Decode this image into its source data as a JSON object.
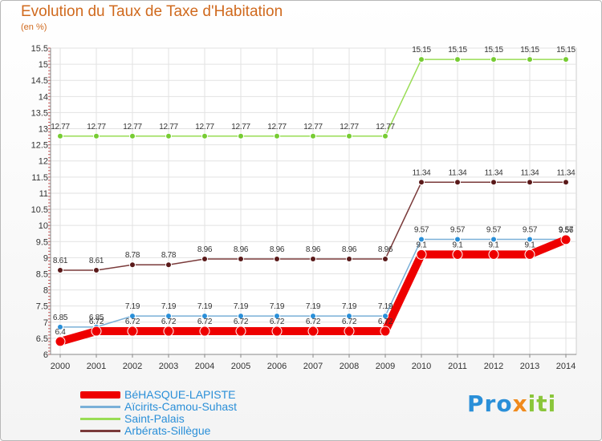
{
  "title": "Evolution du Taux de Taxe d'Habitation",
  "unit": "(en %)",
  "brand": {
    "part1": "Pro",
    "part2": "x",
    "part3": "iti"
  },
  "chart_data": {
    "type": "line",
    "title": "Evolution du Taux de Taxe d'Habitation",
    "ylabel": "(en %)",
    "xlabel": "",
    "ylim": [
      6,
      15.5
    ],
    "yticks": [
      "6",
      "6.5",
      "7",
      "7.5",
      "8",
      "8.5",
      "9",
      "9.5",
      "10",
      "10.5",
      "11",
      "11.5",
      "12",
      "12.5",
      "13",
      "13.5",
      "14",
      "14.5",
      "15",
      "15.5"
    ],
    "categories": [
      "2000",
      "2001",
      "2002",
      "2003",
      "2004",
      "2005",
      "2006",
      "2007",
      "2008",
      "2009",
      "2010",
      "2011",
      "2012",
      "2013",
      "2014"
    ],
    "series": [
      {
        "name": "BéHASQUE-LAPISTE",
        "color": "#ee0000",
        "values": [
          6.4,
          6.72,
          6.72,
          6.72,
          6.72,
          6.72,
          6.72,
          6.72,
          6.72,
          6.72,
          9.1,
          9.1,
          9.1,
          9.1,
          9.56
        ],
        "labels": [
          "6.4",
          "6.72",
          "6.72",
          "6.72",
          "6.72",
          "6.72",
          "6.72",
          "6.72",
          "6.72",
          "6.72",
          "9.1",
          "9.1",
          "9.1",
          "9.1",
          "9.56"
        ]
      },
      {
        "name": "Aïcirits-Camou-Suhast",
        "color": "#7ab0d8",
        "values": [
          6.85,
          6.85,
          7.19,
          7.19,
          7.19,
          7.19,
          7.19,
          7.19,
          7.19,
          7.19,
          9.57,
          9.57,
          9.57,
          9.57,
          9.57
        ],
        "labels": [
          "6.85",
          "6.85",
          "7.19",
          "7.19",
          "7.19",
          "7.19",
          "7.19",
          "7.19",
          "7.19",
          "7.19",
          "9.57",
          "9.57",
          "9.57",
          "9.57",
          "9.57"
        ]
      },
      {
        "name": "Saint-Palais",
        "color": "#99dd55",
        "values": [
          12.77,
          12.77,
          12.77,
          12.77,
          12.77,
          12.77,
          12.77,
          12.77,
          12.77,
          12.77,
          15.15,
          15.15,
          15.15,
          15.15,
          15.15
        ],
        "labels": [
          "12.77",
          "12.77",
          "12.77",
          "12.77",
          "12.77",
          "12.77",
          "12.77",
          "12.77",
          "12.77",
          "12.77",
          "15.15",
          "15.15",
          "15.15",
          "15.15",
          "15.15"
        ]
      },
      {
        "name": "Arbérats-Sillègue",
        "color": "#7a3a3a",
        "values": [
          8.61,
          8.61,
          8.78,
          8.78,
          8.96,
          8.96,
          8.96,
          8.96,
          8.96,
          8.96,
          11.34,
          11.34,
          11.34,
          11.34,
          11.34
        ],
        "labels": [
          "8.61",
          "8.61",
          "8.78",
          "8.78",
          "8.96",
          "8.96",
          "8.96",
          "8.96",
          "8.96",
          "8.96",
          "11.34",
          "11.34",
          "11.34",
          "11.34",
          "11.34"
        ]
      }
    ],
    "legend": [
      "BéHASQUE-LAPISTE",
      "Aïcirits-Camou-Suhast",
      "Saint-Palais",
      "Arbérats-Sillègue"
    ],
    "legend_position": "bottom-left",
    "grid": true
  }
}
